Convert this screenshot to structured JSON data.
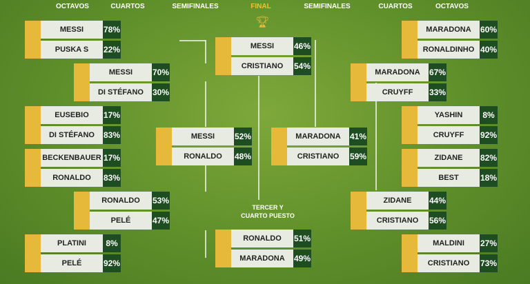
{
  "headers": {
    "l_oct": "OCTAVOS",
    "l_cua": "CUARTOS",
    "l_semi": "SEMIFINALES",
    "final": "FINAL",
    "r_semi": "SEMIFINALES",
    "r_cua": "CUARTOS",
    "r_oct": "OCTAVOS"
  },
  "third_label": {
    "line1": "TERCER Y",
    "line2": "CUARTO PUESTO"
  },
  "colors": {
    "yellow": "#e7b93a",
    "pct_bg": "#1e4d22",
    "name_bg": "#e8ebe2",
    "final_header": "#f0c030"
  },
  "icons": {
    "final": "trophy-icon"
  },
  "matches": [
    {
      "id": "l-oct-1",
      "players": [
        {
          "name": "MESSI",
          "pct": "78%"
        },
        {
          "name": "PUSKA S",
          "pct": "22%"
        }
      ]
    },
    {
      "id": "l-oct-2",
      "players": [
        {
          "name": "EUSEBIO",
          "pct": "17%"
        },
        {
          "name": "DI STÉFANO",
          "pct": "83%"
        }
      ]
    },
    {
      "id": "l-oct-3",
      "players": [
        {
          "name": "BECKENBAUER",
          "pct": "17%"
        },
        {
          "name": "RONALDO",
          "pct": "83%"
        }
      ]
    },
    {
      "id": "l-oct-4",
      "players": [
        {
          "name": "PLATINI",
          "pct": "8%"
        },
        {
          "name": "PELÉ",
          "pct": "92%"
        }
      ]
    },
    {
      "id": "l-cua-1",
      "players": [
        {
          "name": "MESSI",
          "pct": "70%"
        },
        {
          "name": "DI STÉFANO",
          "pct": "30%"
        }
      ]
    },
    {
      "id": "l-cua-2",
      "players": [
        {
          "name": "RONALDO",
          "pct": "53%"
        },
        {
          "name": "PELÉ",
          "pct": "47%"
        }
      ]
    },
    {
      "id": "l-semi",
      "players": [
        {
          "name": "MESSI",
          "pct": "52%"
        },
        {
          "name": "RONALDO",
          "pct": "48%"
        }
      ]
    },
    {
      "id": "final",
      "players": [
        {
          "name": "MESSI",
          "pct": "46%"
        },
        {
          "name": "CRISTIANO",
          "pct": "54%"
        }
      ]
    },
    {
      "id": "third",
      "players": [
        {
          "name": "RONALDO",
          "pct": "51%"
        },
        {
          "name": "MARADONA",
          "pct": "49%"
        }
      ]
    },
    {
      "id": "r-semi",
      "players": [
        {
          "name": "MARADONA",
          "pct": "41%"
        },
        {
          "name": "CRISTIANO",
          "pct": "59%"
        }
      ]
    },
    {
      "id": "r-cua-1",
      "players": [
        {
          "name": "MARADONA",
          "pct": "67%"
        },
        {
          "name": "CRUYFF",
          "pct": "33%"
        }
      ]
    },
    {
      "id": "r-cua-2",
      "players": [
        {
          "name": "ZIDANE",
          "pct": "44%"
        },
        {
          "name": "CRISTIANO",
          "pct": "56%"
        }
      ]
    },
    {
      "id": "r-oct-1",
      "players": [
        {
          "name": "MARADONA",
          "pct": "60%"
        },
        {
          "name": "RONALDINHO",
          "pct": "40%"
        }
      ]
    },
    {
      "id": "r-oct-2",
      "players": [
        {
          "name": "YASHIN",
          "pct": "8%"
        },
        {
          "name": "CRUYFF",
          "pct": "92%"
        }
      ]
    },
    {
      "id": "r-oct-3",
      "players": [
        {
          "name": "ZIDANE",
          "pct": "82%"
        },
        {
          "name": "BEST",
          "pct": "18%"
        }
      ]
    },
    {
      "id": "r-oct-4",
      "players": [
        {
          "name": "MALDINI",
          "pct": "27%"
        },
        {
          "name": "CRISTIANO",
          "pct": "73%"
        }
      ]
    }
  ]
}
